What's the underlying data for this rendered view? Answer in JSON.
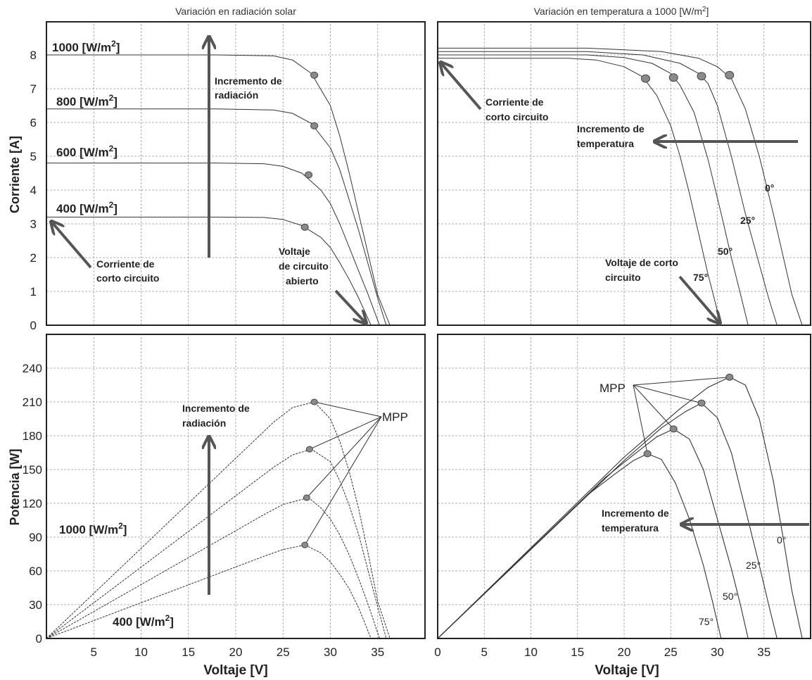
{
  "chart_data": [
    {
      "id": "tl",
      "type": "line",
      "title": "Variación en radiación solar",
      "xlabel": "",
      "ylabel": "Corriente [A]",
      "xlim": [
        0,
        40
      ],
      "ylim": [
        0,
        9
      ],
      "xticks": [],
      "yticks": [
        "0",
        "1",
        "2",
        "3",
        "4",
        "5",
        "6",
        "7",
        "8"
      ],
      "series": [
        {
          "name": "1000 [W/m2]",
          "x": [
            0,
            18,
            24,
            26,
            28,
            30,
            31,
            32,
            33,
            34,
            35,
            36.3
          ],
          "y": [
            8,
            8,
            7.97,
            7.85,
            7.45,
            6.5,
            5.6,
            4.5,
            3.3,
            2.1,
            0.9,
            0
          ]
        },
        {
          "name": "800 [W/m2]",
          "x": [
            0,
            18,
            24,
            26,
            28,
            30,
            31,
            32,
            33,
            34,
            35,
            35.9
          ],
          "y": [
            6.4,
            6.4,
            6.37,
            6.27,
            5.97,
            5.25,
            4.6,
            3.7,
            2.8,
            1.8,
            0.8,
            0
          ]
        },
        {
          "name": "600 [W/m2]",
          "x": [
            0,
            18,
            23,
            25,
            27,
            29,
            30,
            31,
            32,
            33,
            34,
            35.2
          ],
          "y": [
            4.8,
            4.8,
            4.78,
            4.7,
            4.5,
            4.0,
            3.6,
            3.0,
            2.3,
            1.6,
            0.9,
            0
          ]
        },
        {
          "name": "400 [W/m2]",
          "x": [
            0,
            18,
            23,
            25,
            27,
            29,
            30,
            31,
            32,
            33,
            34.3
          ],
          "y": [
            3.2,
            3.2,
            3.19,
            3.13,
            2.95,
            2.6,
            2.3,
            1.85,
            1.35,
            0.8,
            0
          ]
        }
      ],
      "mpp": [
        {
          "x": 28.3,
          "y": 7.4
        },
        {
          "x": 28.3,
          "y": 5.9
        },
        {
          "x": 27.7,
          "y": 4.45
        },
        {
          "x": 27.3,
          "y": 2.9
        }
      ],
      "labels": [
        "1000 [W/m2]",
        "800 [W/m2]",
        "600 [W/m2]",
        "400 [W/m2]"
      ],
      "annotations": {
        "incremento_l1": "Incremento de",
        "incremento_l2": "radiación",
        "corto_l1": "Corriente de",
        "corto_l2": "corto circuito",
        "voc_l1": "Voltaje",
        "voc_l2": "de circuito",
        "voc_l3": "abierto"
      }
    },
    {
      "id": "tr",
      "type": "line",
      "title": "Variación en temperatura a 1000 [W/m2]",
      "xlabel": "",
      "ylabel": "",
      "xlim": [
        0,
        40
      ],
      "ylim": [
        0,
        9
      ],
      "series": [
        {
          "name": "0°",
          "x": [
            0,
            16,
            24,
            28,
            30,
            31.5,
            33,
            34.5,
            36,
            37,
            38,
            39.1
          ],
          "y": [
            8.2,
            8.2,
            8.1,
            7.9,
            7.65,
            7.3,
            6.4,
            5.0,
            3.3,
            2.1,
            0.9,
            0
          ]
        },
        {
          "name": "25°",
          "x": [
            0,
            16,
            22,
            26,
            28,
            29,
            30,
            31.5,
            33,
            34.5,
            35.5,
            36.4
          ],
          "y": [
            8.1,
            8.1,
            8.0,
            7.75,
            7.45,
            7.15,
            6.5,
            5.0,
            3.3,
            1.8,
            0.8,
            0
          ]
        },
        {
          "name": "50°",
          "x": [
            0,
            16,
            20,
            23,
            25,
            26,
            27.5,
            29,
            30.5,
            31.5,
            32.5,
            33.3
          ],
          "y": [
            8.0,
            8.0,
            7.92,
            7.75,
            7.45,
            7.1,
            6.3,
            4.9,
            3.2,
            2.0,
            0.9,
            0
          ]
        },
        {
          "name": "75°",
          "x": [
            0,
            14,
            17,
            20,
            22,
            23.5,
            25,
            26,
            27,
            28,
            29,
            30.4
          ],
          "y": [
            7.9,
            7.9,
            7.85,
            7.65,
            7.35,
            6.8,
            5.9,
            5.0,
            3.9,
            2.7,
            1.5,
            0
          ]
        }
      ],
      "mpp": [
        {
          "x": 31.3,
          "y": 7.4
        },
        {
          "x": 28.3,
          "y": 7.37
        },
        {
          "x": 25.3,
          "y": 7.33
        },
        {
          "x": 22.3,
          "y": 7.3
        }
      ],
      "curve_labels": [
        "0°",
        "25°",
        "50°",
        "75°"
      ],
      "annotations": {
        "corto_l1": "Corriente de",
        "corto_l2": "corto circuito",
        "incremento_l1": "Incremento de",
        "incremento_l2": "temperatura",
        "voc_l1": "Voltaje de corto",
        "voc_l2": "circuito"
      }
    },
    {
      "id": "bl",
      "type": "line",
      "title": "",
      "xlabel": "Voltaje [V]",
      "ylabel": "Potencia [W]",
      "xlim": [
        0,
        40
      ],
      "ylim": [
        0,
        270
      ],
      "xticks": [
        "5",
        "10",
        "15",
        "20",
        "25",
        "30",
        "35"
      ],
      "yticks": [
        "0",
        "30",
        "60",
        "90",
        "120",
        "150",
        "180",
        "210",
        "240"
      ],
      "series": [
        {
          "name": "1000 [W/m2]",
          "x": [
            0,
            24,
            26,
            28.3,
            30,
            31,
            32,
            33,
            34,
            35,
            36.3
          ],
          "y": [
            0,
            192,
            205,
            210,
            195,
            175,
            148,
            115,
            75,
            33,
            0
          ]
        },
        {
          "name": "800 [W/m2]",
          "x": [
            0,
            24,
            26,
            28,
            30,
            31,
            32,
            33,
            34,
            35,
            35.9
          ],
          "y": [
            0,
            152,
            163,
            168,
            157,
            140,
            118,
            92,
            60,
            28,
            0
          ]
        },
        {
          "name": "600 [W/m2]",
          "x": [
            0,
            23,
            25,
            27.7,
            29,
            30,
            31,
            32,
            33,
            34,
            35.2
          ],
          "y": [
            0,
            110,
            119,
            125,
            116,
            106,
            92,
            74,
            53,
            30,
            0
          ]
        },
        {
          "name": "400 [W/m2]",
          "x": [
            0,
            23,
            25,
            27.3,
            29,
            30,
            31,
            32,
            33,
            34.3
          ],
          "y": [
            0,
            73,
            79,
            83,
            76,
            68,
            57,
            44,
            27,
            0
          ]
        }
      ],
      "mpp": [
        {
          "x": 28.3,
          "y": 210
        },
        {
          "x": 27.8,
          "y": 168
        },
        {
          "x": 27.5,
          "y": 125
        },
        {
          "x": 27.3,
          "y": 83
        }
      ],
      "annotations": {
        "incremento_l1": "Incremento de",
        "incremento_l2": "radiación",
        "mpp": "MPP",
        "label_1000": "1000 [W/m2]",
        "label_400": "400 [W/m2]"
      }
    },
    {
      "id": "br",
      "type": "line",
      "title": "",
      "xlabel": "Voltaje [V]",
      "ylabel": "",
      "xlim": [
        0,
        40
      ],
      "ylim": [
        0,
        270
      ],
      "xticks": [
        "0",
        "5",
        "10",
        "15",
        "20",
        "25",
        "30",
        "35"
      ],
      "series": [
        {
          "name": "0°",
          "x": [
            0,
            20,
            26,
            29,
            31.3,
            33,
            34.5,
            36,
            37,
            38,
            39.1
          ],
          "y": [
            0,
            161,
            204,
            223,
            232,
            225,
            195,
            140,
            92,
            42,
            0
          ]
        },
        {
          "name": "25°",
          "x": [
            0,
            20,
            24,
            26.5,
            28.3,
            30,
            31.5,
            33,
            34.5,
            35.5,
            36.4
          ],
          "y": [
            0,
            158,
            187,
            201,
            209,
            196,
            165,
            115,
            65,
            30,
            0
          ]
        },
        {
          "name": "50°",
          "x": [
            0,
            18,
            21,
            23.5,
            25.3,
            27,
            28.5,
            30,
            31.5,
            32.5,
            33.3
          ],
          "y": [
            0,
            143,
            163,
            179,
            186,
            177,
            150,
            106,
            62,
            29,
            0
          ]
        },
        {
          "name": "75°",
          "x": [
            0,
            16,
            19,
            21,
            22.5,
            24,
            25.5,
            27,
            28.5,
            29.5,
            30.4
          ],
          "y": [
            0,
            127,
            146,
            158,
            164,
            159,
            138,
            106,
            65,
            32,
            0
          ]
        }
      ],
      "mpp": [
        {
          "x": 31.3,
          "y": 232
        },
        {
          "x": 28.3,
          "y": 209
        },
        {
          "x": 25.3,
          "y": 186
        },
        {
          "x": 22.5,
          "y": 164
        }
      ],
      "curve_labels": [
        "0°",
        "25°",
        "50°",
        "75°"
      ],
      "annotations": {
        "mpp": "MPP",
        "incremento_l1": "Incremento de",
        "incremento_l2": "temperatura"
      }
    }
  ]
}
